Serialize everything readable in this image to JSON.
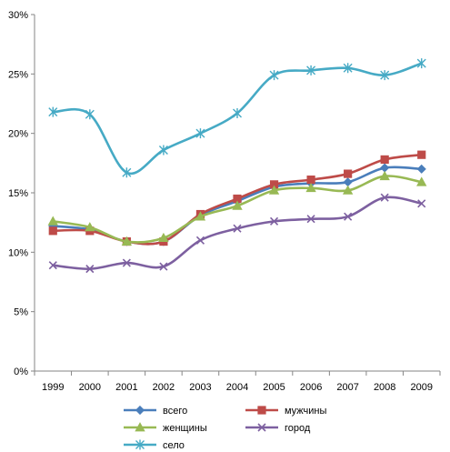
{
  "chart_data": {
    "type": "line",
    "x": [
      "1999",
      "2000",
      "2001",
      "2002",
      "2003",
      "2004",
      "2005",
      "2006",
      "2007",
      "2008",
      "2009"
    ],
    "ylim": [
      0,
      30
    ],
    "yticks": [
      0,
      5,
      10,
      15,
      20,
      25,
      30
    ],
    "ytick_labels": [
      "0%",
      "5%",
      "10%",
      "15%",
      "20%",
      "25%",
      "30%"
    ],
    "grid": false,
    "smooth": true,
    "legend_position": "bottom",
    "series": [
      {
        "name": "всего",
        "color": "#4a7ebb",
        "marker": "diamond",
        "values": [
          12.2,
          11.9,
          10.9,
          10.9,
          13.1,
          14.3,
          15.5,
          15.8,
          15.9,
          17.1,
          17.0
        ]
      },
      {
        "name": "мужчины",
        "color": "#be4b48",
        "marker": "square",
        "values": [
          11.8,
          11.8,
          10.9,
          10.9,
          13.2,
          14.5,
          15.7,
          16.1,
          16.6,
          17.8,
          18.2
        ]
      },
      {
        "name": "женщины",
        "color": "#98b954",
        "marker": "triangle",
        "values": [
          12.6,
          12.1,
          10.9,
          11.2,
          13.0,
          13.9,
          15.2,
          15.4,
          15.2,
          16.4,
          15.9
        ]
      },
      {
        "name": "город",
        "color": "#7d60a0",
        "marker": "x",
        "values": [
          8.9,
          8.6,
          9.1,
          8.8,
          11.0,
          12.0,
          12.6,
          12.8,
          13.0,
          14.6,
          14.1
        ]
      },
      {
        "name": "село",
        "color": "#46aac5",
        "marker": "star",
        "values": [
          21.8,
          21.6,
          16.7,
          18.6,
          20.0,
          21.7,
          24.9,
          25.3,
          25.5,
          24.9,
          25.9
        ]
      }
    ]
  }
}
